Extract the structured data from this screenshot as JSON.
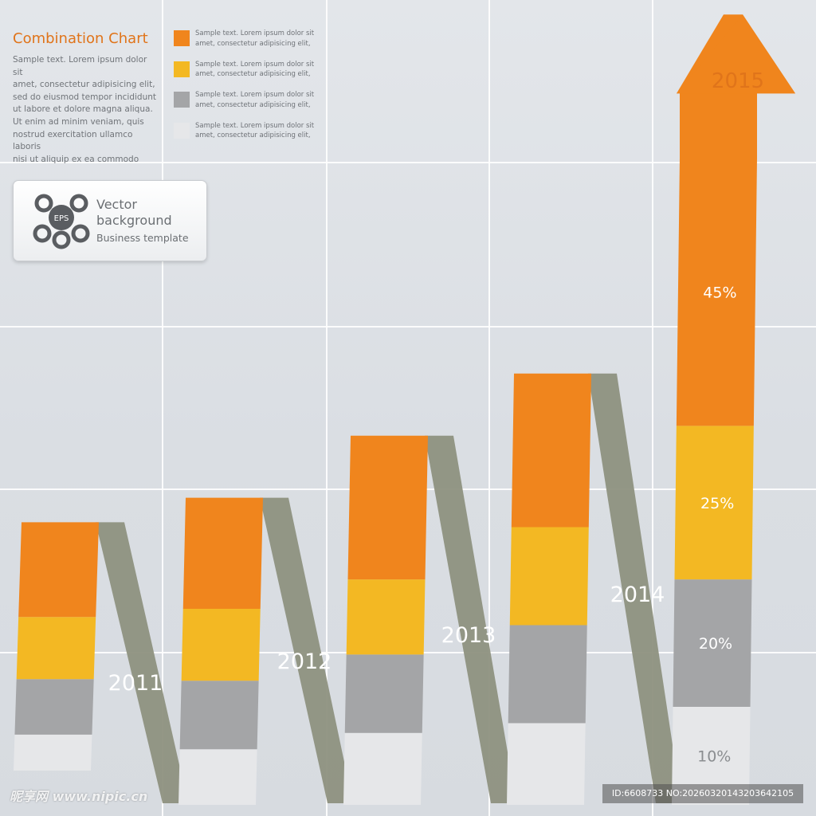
{
  "header": {
    "title": "Combination Chart",
    "description_lines": [
      "Sample text. Lorem ipsum dolor sit",
      "amet, consectetur adipisicing elit,",
      "sed do eiusmod tempor incididunt",
      "ut labore et dolore magna aliqua.",
      "Ut enim ad minim veniam, quis",
      "nostrud exercitation ullamco laboris",
      "nisi ut aliquip ex ea commodo"
    ]
  },
  "legend": [
    {
      "color": "#f0851d",
      "line1": "Sample text. Lorem ipsum dolor sit",
      "line2": "amet, consectetur adipisicing elit,"
    },
    {
      "color": "#f3b823",
      "line1": "Sample text. Lorem ipsum dolor sit",
      "line2": "amet, consectetur adipisicing elit,"
    },
    {
      "color": "#a4a5a7",
      "line1": "Sample text. Lorem ipsum dolor sit",
      "line2": "amet, consectetur adipisicing elit,"
    },
    {
      "color": "#e6e7e9",
      "line1": "Sample text. Lorem ipsum dolor sit",
      "line2": "amet, consectetur adipisicing elit,"
    }
  ],
  "badge": {
    "logo_text": "EPS",
    "line1": "Vector",
    "line2": "background",
    "line3": "Business template"
  },
  "watermark": {
    "left": "昵享网 www.nipic.cn",
    "right": "ID:6608733 NO:20260320143203642105"
  },
  "colors": {
    "orange": "#f0851d",
    "yellow": "#f3b823",
    "gray": "#a4a5a7",
    "white": "#e6e7e9",
    "ribbon": "#8e9180",
    "label_dark": "#ffffff",
    "label_light": "#8a8d90",
    "year_accent": "#e0741a"
  },
  "chart_data": {
    "type": "bar",
    "stacked": true,
    "title": "Combination Chart",
    "categories": [
      "2011",
      "2012",
      "2013",
      "2014",
      "2015"
    ],
    "series": [
      {
        "name": "Sample text. Lorem ipsum dolor sit amet, consectetur adipisicing elit,",
        "color": "#e6e7e9",
        "values": [
          11,
          17,
          22,
          25,
          30
        ]
      },
      {
        "name": "Sample text. Lorem ipsum dolor sit amet, consectetur adipisicing elit,",
        "color": "#a4a5a7",
        "values": [
          17,
          21,
          24,
          30,
          39
        ]
      },
      {
        "name": "Sample text. Lorem ipsum dolor sit amet, consectetur adipisicing elit,",
        "color": "#f3b823",
        "values": [
          19,
          22,
          23,
          30,
          47
        ]
      },
      {
        "name": "Sample text. Lorem ipsum dolor sit amet, consectetur adipisicing elit,",
        "color": "#f0851d",
        "values": [
          29,
          34,
          44,
          47,
          82
        ]
      }
    ],
    "segment_labels_2015": [
      "10%",
      "20%",
      "25%",
      "45%"
    ],
    "highlight_year": "2015",
    "ylim": [
      0,
      240
    ],
    "xlabel": "",
    "ylabel": ""
  }
}
